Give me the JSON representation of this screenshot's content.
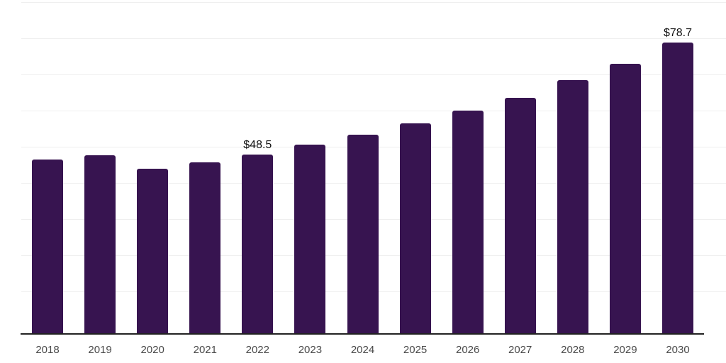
{
  "chart_data": {
    "type": "bar",
    "categories": [
      "2018",
      "2019",
      "2020",
      "2021",
      "2022",
      "2023",
      "2024",
      "2025",
      "2026",
      "2027",
      "2028",
      "2029",
      "2030"
    ],
    "values": [
      47.0,
      48.3,
      44.6,
      46.3,
      48.5,
      51.1,
      53.7,
      56.8,
      60.3,
      63.8,
      68.4,
      72.9,
      78.7
    ],
    "data_labels": [
      {
        "category": "2022",
        "text": "$48.5"
      },
      {
        "category": "2030",
        "text": "$78.7"
      }
    ],
    "title": "",
    "xlabel": "",
    "ylabel": "",
    "ylim": [
      0,
      90
    ],
    "grid": true,
    "legend": "none",
    "colors": {
      "bar": "#371450",
      "axis": "#222222",
      "gridline": "#efefef",
      "tick_label": "#4a4a4a",
      "data_label": "#111111"
    }
  }
}
